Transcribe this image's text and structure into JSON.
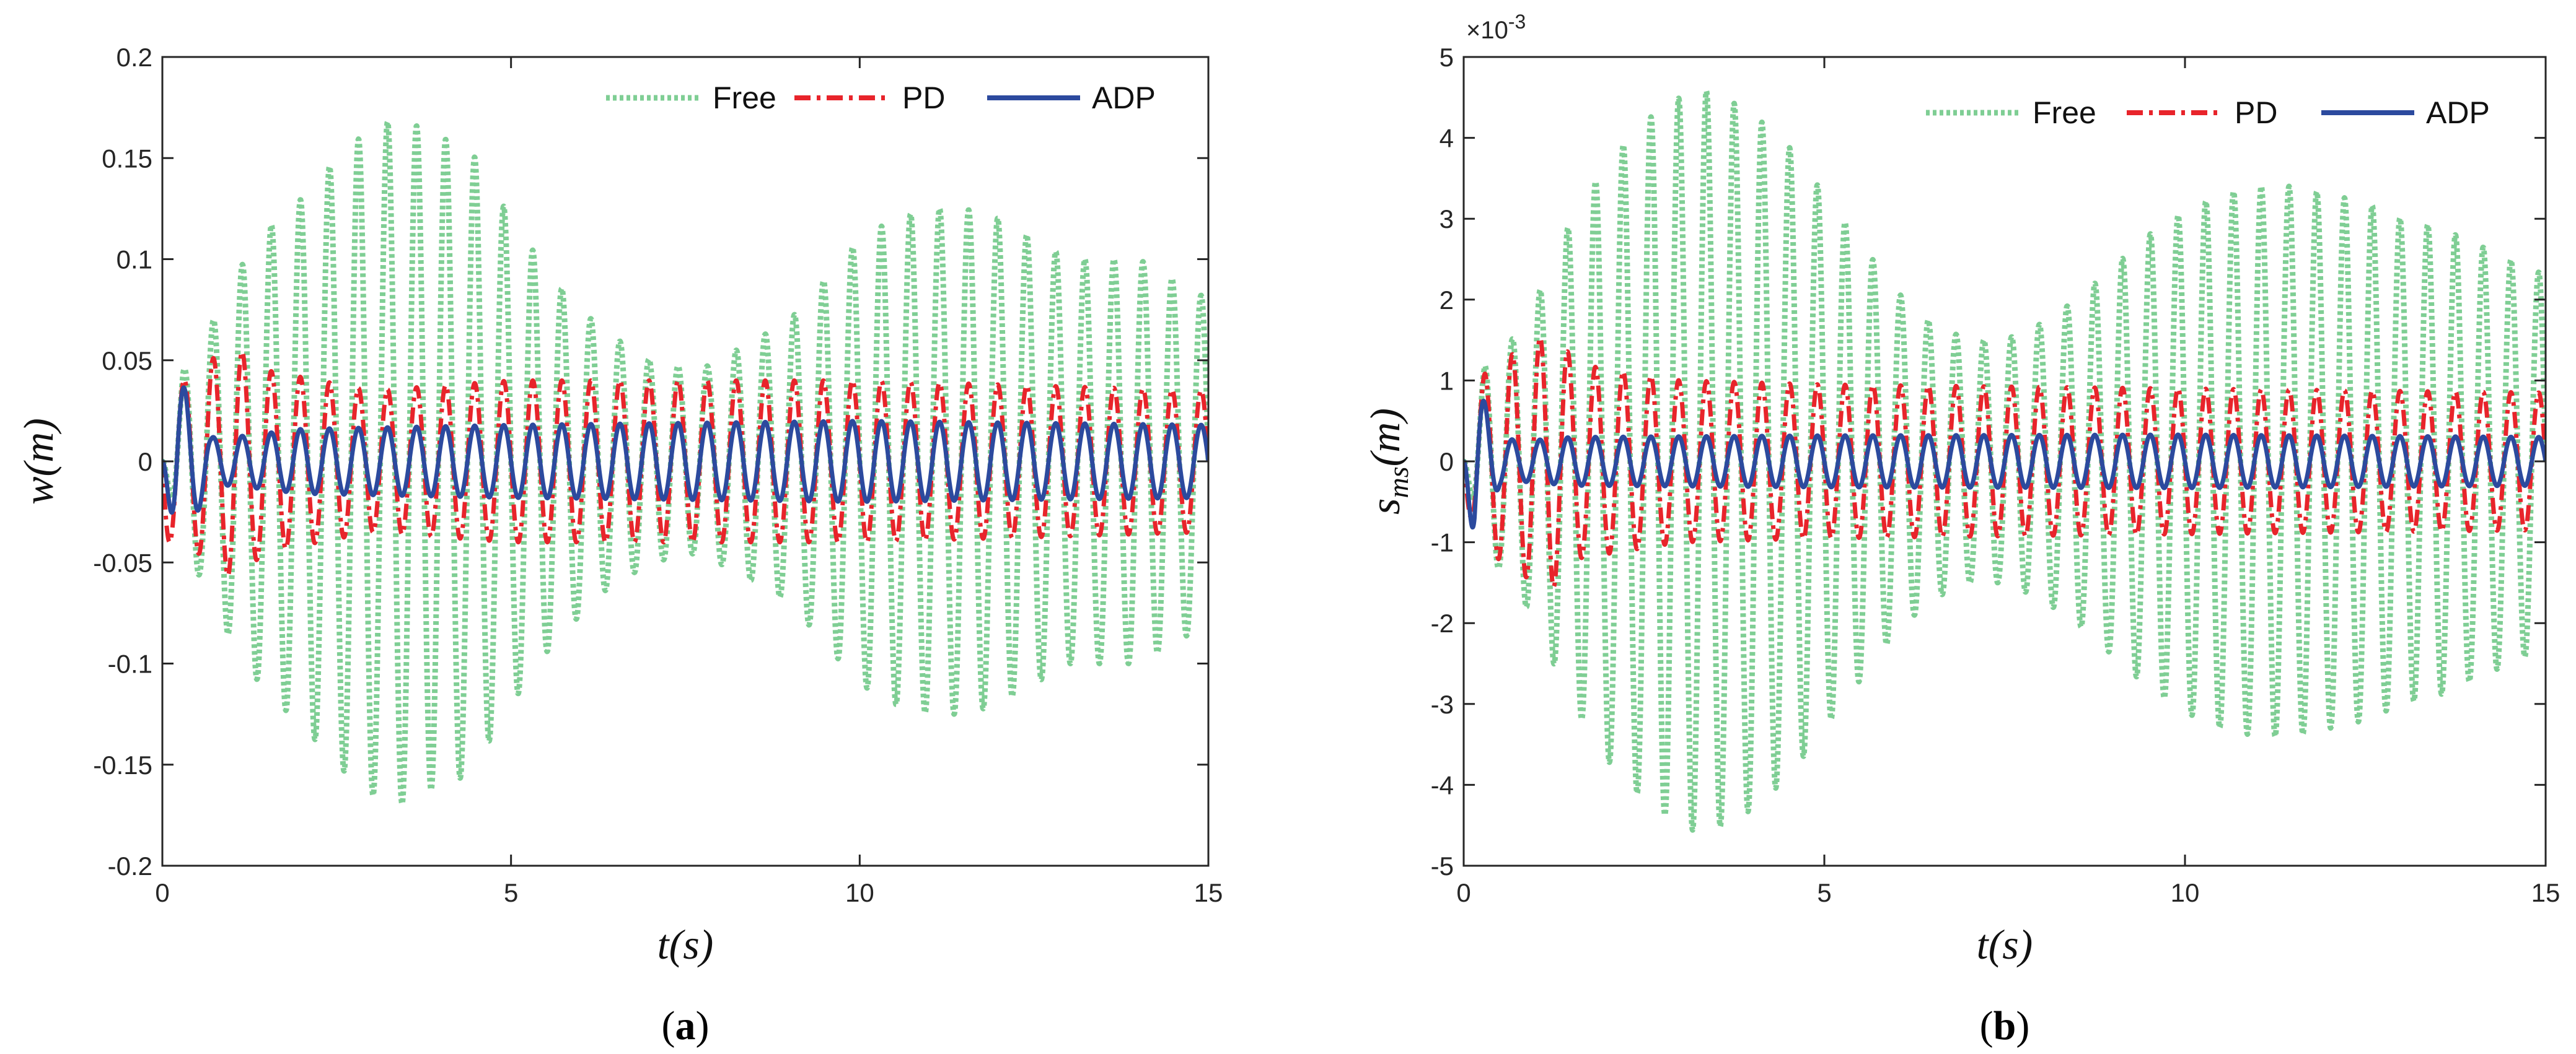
{
  "chart_data": [
    {
      "type": "line",
      "panel_label": {
        "open": "(",
        "letter": "a",
        "close": ")"
      },
      "ylabel": "w(m)",
      "xlabel": "t(s)",
      "xlim": [
        0,
        15
      ],
      "ylim": [
        -0.2,
        0.2
      ],
      "xticks": [
        0,
        5,
        10,
        15
      ],
      "xtick_labels": [
        "0",
        "5",
        "10",
        "15"
      ],
      "yticks": [
        -0.2,
        -0.15,
        -0.1,
        -0.05,
        0,
        0.05,
        0.1,
        0.15,
        0.2
      ],
      "ytick_labels": [
        "-0.2",
        "-0.15",
        "-0.1",
        "-0.05",
        "0",
        "0.05",
        "0.1",
        "0.15",
        "0.2"
      ],
      "grid": false,
      "legend_position": "top-right",
      "legend": [
        "Free",
        "PD",
        "ADP"
      ],
      "series": [
        {
          "name": "Free",
          "color": "#7fce94",
          "style": "dotted",
          "frequency_hz": 2.4,
          "envelope_t": [
            0,
            0.3,
            0.6,
            1.0,
            1.5,
            2.0,
            2.5,
            3.0,
            3.4,
            4.0,
            4.4,
            5.0,
            5.6,
            6.3,
            7.0,
            7.7,
            8.5,
            9.0,
            9.5,
            10.0,
            10.5,
            11.0,
            11.5,
            12.0,
            12.5,
            13.0,
            13.5,
            14.0,
            14.5,
            15.0
          ],
          "envelope_amp": [
            0,
            0.045,
            0.06,
            0.09,
            0.115,
            0.13,
            0.15,
            0.165,
            0.17,
            0.16,
            0.155,
            0.12,
            0.09,
            0.065,
            0.05,
            0.045,
            0.06,
            0.07,
            0.09,
            0.11,
            0.12,
            0.125,
            0.125,
            0.12,
            0.11,
            0.1,
            0.1,
            0.1,
            0.09,
            0.08
          ]
        },
        {
          "name": "PD",
          "color": "#e8242b",
          "style": "dashdot",
          "frequency_hz": 2.4,
          "envelope_t": [
            0,
            0.3,
            1.0,
            1.5,
            3.0,
            5.0,
            10.0,
            15.0
          ],
          "envelope_amp": [
            0.04,
            0.04,
            0.058,
            0.045,
            0.035,
            0.04,
            0.04,
            0.035
          ]
        },
        {
          "name": "ADP",
          "color": "#2c4a9e",
          "style": "solid",
          "frequency_hz": 2.4,
          "envelope_t": [
            0,
            0.2,
            0.4,
            0.7,
            1.0,
            2.0,
            5.0,
            10.0,
            15.0
          ],
          "envelope_amp": [
            0.0,
            0.042,
            0.032,
            0.012,
            0.012,
            0.016,
            0.018,
            0.02,
            0.018
          ]
        }
      ]
    },
    {
      "type": "line",
      "panel_label": {
        "open": "(",
        "letter": "b",
        "close": ")"
      },
      "ylabel": "s_ms(m)",
      "ylabel_main": "s",
      "ylabel_sub": "ms",
      "ylabel_rest": "(m)",
      "xlabel": "t(s)",
      "xlim": [
        0,
        15
      ],
      "ylim": [
        -5,
        5
      ],
      "multiplier": {
        "base": "×10",
        "exp": "-3"
      },
      "xticks": [
        0,
        5,
        10,
        15
      ],
      "xtick_labels": [
        "0",
        "5",
        "10",
        "15"
      ],
      "yticks": [
        -5,
        -4,
        -3,
        -2,
        -1,
        0,
        1,
        2,
        3,
        4,
        5
      ],
      "ytick_labels": [
        "-5",
        "-4",
        "-3",
        "-2",
        "-1",
        "0",
        "1",
        "2",
        "3",
        "4",
        "5"
      ],
      "grid": false,
      "legend_position": "top-right",
      "legend": [
        "Free",
        "PD",
        "ADP"
      ],
      "series": [
        {
          "name": "Free",
          "color": "#7fce94",
          "style": "dotted",
          "frequency_hz": 2.6,
          "envelope_t": [
            0,
            0.3,
            0.6,
            1.0,
            1.5,
            2.0,
            2.5,
            3.0,
            3.3,
            3.6,
            4.0,
            4.5,
            5.0,
            5.5,
            6.0,
            6.5,
            7.0,
            7.5,
            8.0,
            8.5,
            9.0,
            9.5,
            10.0,
            10.5,
            11.0,
            11.5,
            12.0,
            12.5,
            13.0,
            13.5,
            14.0,
            14.5,
            15.0
          ],
          "envelope_amp": [
            0,
            1.2,
            1.4,
            2.0,
            3.0,
            3.7,
            4.2,
            4.5,
            4.6,
            4.5,
            4.3,
            3.9,
            3.3,
            2.7,
            2.1,
            1.7,
            1.5,
            1.5,
            1.7,
            2.0,
            2.4,
            2.8,
            3.1,
            3.3,
            3.4,
            3.4,
            3.3,
            3.2,
            3.0,
            2.9,
            2.7,
            2.5,
            2.3
          ]
        },
        {
          "name": "PD",
          "color": "#e8242b",
          "style": "dashdot",
          "frequency_hz": 2.6,
          "envelope_t": [
            0,
            0.3,
            0.8,
            1.2,
            1.6,
            3.0,
            5.0,
            10.0,
            15.0
          ],
          "envelope_amp": [
            0.5,
            1.1,
            1.4,
            1.6,
            1.2,
            1.0,
            0.95,
            0.9,
            0.85
          ]
        },
        {
          "name": "ADP",
          "color": "#2c4a9e",
          "style": "solid",
          "frequency_hz": 2.6,
          "envelope_t": [
            0,
            0.15,
            0.3,
            0.5,
            0.8,
            1.5,
            5.0,
            10.0,
            15.0
          ],
          "envelope_amp": [
            0.0,
            1.1,
            0.7,
            0.3,
            0.25,
            0.3,
            0.32,
            0.33,
            0.3
          ]
        }
      ]
    }
  ]
}
